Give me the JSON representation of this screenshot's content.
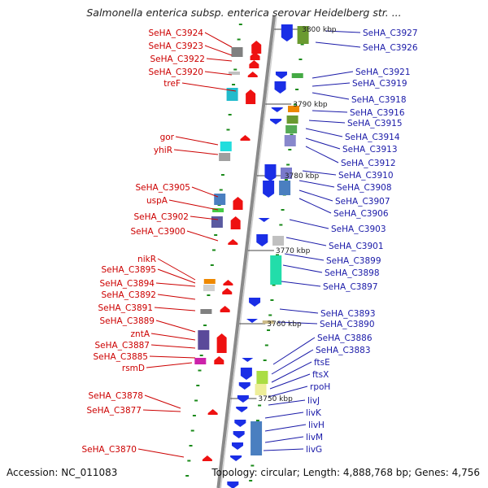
{
  "title": "Salmonella enterica subsp. enterica serovar Heidelberg str. ...",
  "footer": {
    "accession": "Accession: NC_011083",
    "topology": "Topology: circular; Length: 4,888,768 bp; Genes: 4,756"
  },
  "colors": {
    "left_label": "#cc0000",
    "right_label": "#1a1aa8",
    "backbone": "#8a8a8a",
    "fwd_gene": "#ee1111",
    "rev_gene": "#1a2ee6",
    "tick_mark": "#1a8a1a"
  },
  "scale_ticks": [
    "3800 kbp",
    "3790 kbp",
    "3780 kbp",
    "3770 kbp",
    "3760 kbp",
    "3750 kbp"
  ],
  "left_labels": [
    "SeHA_C3924",
    "SeHA_C3923",
    "SeHA_C3922",
    "SeHA_C3920",
    "treF",
    "gor",
    "yhiR",
    "SeHA_C3905",
    "uspA",
    "SeHA_C3902",
    "SeHA_C3900",
    "nikR",
    "SeHA_C3895",
    "SeHA_C3894",
    "SeHA_C3892",
    "SeHA_C3891",
    "SeHA_C3889",
    "zntA",
    "SeHA_C3887",
    "SeHA_C3885",
    "rsmD",
    "SeHA_C3878",
    "SeHA_C3877",
    "SeHA_C3870"
  ],
  "right_labels": [
    "SeHA_C3927",
    "SeHA_C3926",
    "SeHA_C3921",
    "SeHA_C3919",
    "SeHA_C3918",
    "SeHA_C3916",
    "SeHA_C3915",
    "SeHA_C3914",
    "SeHA_C3913",
    "SeHA_C3912",
    "SeHA_C3910",
    "SeHA_C3908",
    "SeHA_C3907",
    "SeHA_C3906",
    "SeHA_C3903",
    "SeHA_C3901",
    "SeHA_C3899",
    "SeHA_C3898",
    "SeHA_C3897",
    "SeHA_C3893",
    "SeHA_C3890",
    "SeHA_C3886",
    "SeHA_C3883",
    "ftsE",
    "ftsX",
    "rpoH",
    "livJ",
    "livK",
    "livH",
    "livM",
    "livG"
  ]
}
